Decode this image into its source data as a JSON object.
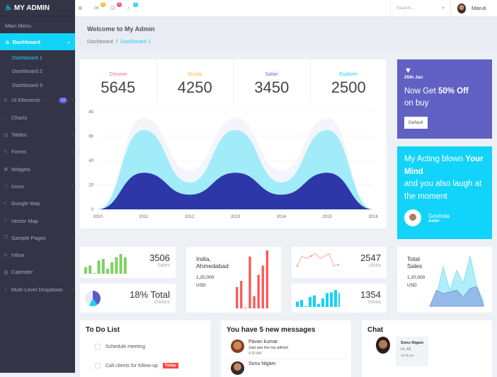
{
  "app": {
    "title": "MY ADMIN"
  },
  "sidebar": {
    "menu_heading": "Main Menu",
    "dashboard": "Dashboard",
    "subitems": [
      "Dashboard 1",
      "Dashboard 2",
      "Dashboard 3"
    ],
    "items": [
      {
        "label": "UI Elements",
        "badge": "13",
        "chevron": true,
        "icon": "⊚"
      },
      {
        "label": "Charts",
        "chevron": true,
        "icon": "◔"
      },
      {
        "label": "Tables",
        "chevron": true,
        "icon": "▤"
      },
      {
        "label": "Forms",
        "chevron": true,
        "icon": "✎"
      },
      {
        "label": "Widgets",
        "icon": "▣"
      },
      {
        "label": "Icons",
        "chevron": true,
        "icon": "☺"
      },
      {
        "label": "Google Map",
        "icon": "⌖"
      },
      {
        "label": "Vector Map",
        "icon": "▽"
      },
      {
        "label": "Sample Pages",
        "chevron": true,
        "icon": "❐"
      },
      {
        "label": "Inbox",
        "icon": "✉"
      },
      {
        "label": "Calender",
        "icon": "▦"
      },
      {
        "label": "Multi-Level Dropdown",
        "chevron": true,
        "icon": "⇧"
      }
    ]
  },
  "topbar": {
    "badges": [
      {
        "icon": "mail-icon",
        "count": "5",
        "color": "#ffb22b"
      },
      {
        "icon": "tasks-icon",
        "count": "5",
        "color": "#fc4b6c"
      },
      {
        "icon": "bell-icon",
        "count": "5",
        "color": "#1fd0f5"
      }
    ],
    "search_placeholder": "Search...",
    "user": "Maruti"
  },
  "header": {
    "title": "Welcome to My Admin",
    "breadcrumb": [
      "Dashboard",
      "Dashboard 1"
    ]
  },
  "stats": [
    {
      "label": "Chrome",
      "value": "5645",
      "color": "#fc6d7c"
    },
    {
      "label": "Mozila",
      "value": "4250",
      "color": "#ffb64d"
    },
    {
      "label": "Safari",
      "value": "3450",
      "color": "#7460ee"
    },
    {
      "label": "Explorer",
      "value": "2500",
      "color": "#1fd0f5"
    }
  ],
  "chart_data": [
    {
      "type": "area",
      "x": [
        2010,
        2011,
        2012,
        2013,
        2014,
        2015,
        2016
      ],
      "ylim": [
        0,
        80
      ],
      "yticks": [
        0,
        20,
        40,
        60,
        80
      ],
      "series": [
        {
          "values": [
            0,
            75,
            32,
            75,
            32,
            75,
            0
          ],
          "color": "#f3f5fa"
        },
        {
          "values": [
            0,
            65,
            22,
            65,
            22,
            65,
            0
          ],
          "color": "#a2ebf8"
        },
        {
          "values": [
            0,
            30,
            12,
            30,
            12,
            30,
            0
          ],
          "color": "#2e37a8"
        }
      ]
    },
    {
      "type": "bar",
      "values": [
        4,
        5,
        0,
        8,
        9,
        3,
        7,
        10,
        12,
        10
      ],
      "color": "#7ed063"
    },
    {
      "type": "pie",
      "values": [
        40,
        18,
        42
      ],
      "colors": [
        "#5c5ac8",
        "#1fd0f5",
        "#e9ecf7"
      ]
    },
    {
      "type": "bar",
      "values": [
        7,
        9,
        0,
        17,
        4,
        11,
        14,
        19
      ],
      "color": "#fc5757"
    },
    {
      "type": "line",
      "values": [
        2,
        6,
        5,
        6,
        7,
        5,
        6,
        7,
        2,
        2.5
      ],
      "color": "#fca9b4"
    },
    {
      "type": "bar",
      "values": [
        7,
        9,
        1,
        13,
        15,
        4,
        11,
        18,
        19,
        22,
        18
      ],
      "color": "#12d3f9"
    },
    {
      "type": "area",
      "series": [
        {
          "values": [
            0,
            6,
            22,
            9,
            20,
            13,
            28,
            11,
            3
          ],
          "color": "#a2ebf8"
        },
        {
          "values": [
            0,
            9,
            7,
            8,
            9,
            5,
            10,
            11,
            0
          ],
          "color": "#8fb0e6"
        }
      ]
    }
  ],
  "widgets": {
    "sales": {
      "value": "3506",
      "label": "Sales"
    },
    "visitors": {
      "value": "18% Total",
      "label": "Visitors"
    },
    "location": {
      "name": "India,",
      "name2": "Ahmedabad",
      "amount": "1,20,000",
      "currency": "USD"
    },
    "clicks": {
      "value": "2547",
      "label": "clicks"
    },
    "views": {
      "value": "1354",
      "label": "Views"
    },
    "total_sales": {
      "title": "Total",
      "title2": "Sales",
      "amount": "1,20,000",
      "currency": "USD"
    }
  },
  "promo": {
    "date": "25th Jan",
    "text1": "Now Get ",
    "bold": "50% Off",
    "text2": "on buy",
    "button": "Default"
  },
  "quote": {
    "text1": "My Acting blown ",
    "bold": "Your Mind",
    "text2": "and you also laugh at the moment",
    "name": "Govinda",
    "role": "Actor"
  },
  "todo": {
    "title": "To Do List",
    "items": [
      {
        "text": "Schedule meeting"
      },
      {
        "text": "Call clients for follow-up",
        "badge": "Today"
      }
    ]
  },
  "messages": {
    "title": "You have 5 new messages",
    "items": [
      {
        "name": "Pavan kumar",
        "text": "Just see the my admin!",
        "time": "9:30 AM"
      },
      {
        "name": "Sonu Nigam"
      }
    ]
  },
  "chat": {
    "title": "Chat",
    "items": [
      {
        "name": "Sonu Nigam",
        "text": "Hi, All",
        "time": "10.00 am"
      }
    ]
  }
}
